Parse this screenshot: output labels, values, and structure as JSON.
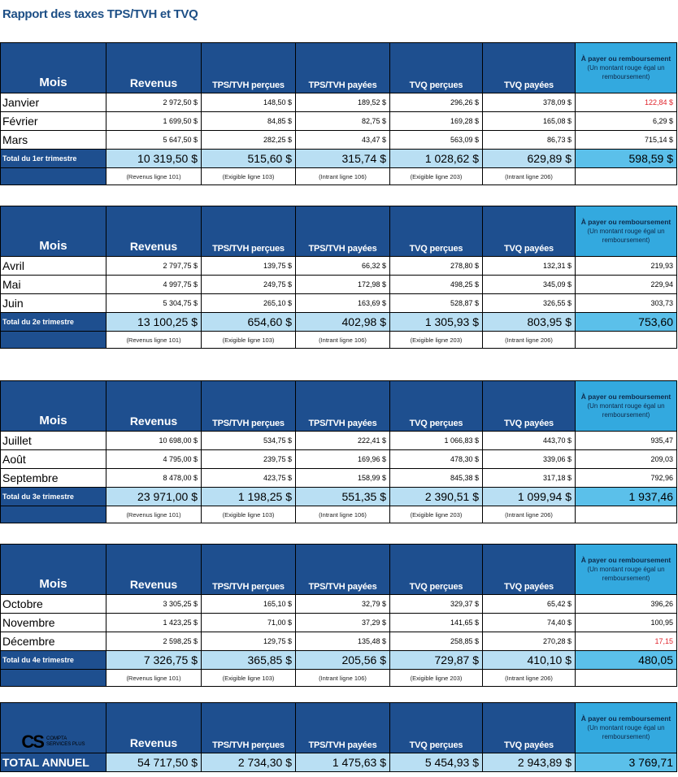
{
  "title": "Rapport des taxes TPS/TVH et TVQ",
  "headers": {
    "mois": "Mois",
    "revenus": "Revenus",
    "tps_percues": "TPS/TVH perçues",
    "tps_payees": "TPS/TVH payées",
    "tvq_percues": "TVQ perçues",
    "tvq_payees": "TVQ payées",
    "a_payer": "À payer ou remboursement",
    "a_payer_note": "(Un montant rouge égal un remboursement)"
  },
  "sources": {
    "revenus": "(Revenus ligne 101)",
    "tps_percues": "(Exigible ligne 103)",
    "tps_payees": "(Intrant ligne 106)",
    "tvq_percues": "(Exigible ligne 203)",
    "tvq_payees": "(Intrant ligne 206)"
  },
  "quarters": [
    {
      "total_label": "Total du 1er trimestre",
      "months": [
        {
          "name": "Janvier",
          "revenus": "2 972,50 $",
          "tps_percues": "148,50 $",
          "tps_payees": "189,52 $",
          "tvq_percues": "296,26 $",
          "tvq_payees": "378,09 $",
          "a_payer": "122,84 $",
          "refund": true
        },
        {
          "name": "Février",
          "revenus": "1 699,50 $",
          "tps_percues": "84,85 $",
          "tps_payees": "82,75 $",
          "tvq_percues": "169,28 $",
          "tvq_payees": "165,08 $",
          "a_payer": "6,29 $",
          "refund": false
        },
        {
          "name": "Mars",
          "revenus": "5 647,50 $",
          "tps_percues": "282,25 $",
          "tps_payees": "43,47 $",
          "tvq_percues": "563,09 $",
          "tvq_payees": "86,73 $",
          "a_payer": "715,14 $",
          "refund": false
        }
      ],
      "totals": {
        "revenus": "10 319,50 $",
        "tps_percues": "515,60 $",
        "tps_payees": "315,74 $",
        "tvq_percues": "1 028,62 $",
        "tvq_payees": "629,89 $",
        "a_payer": "598,59 $"
      }
    },
    {
      "total_label": "Total du 2e trimestre",
      "months": [
        {
          "name": "Avril",
          "revenus": "2 797,75 $",
          "tps_percues": "139,75 $",
          "tps_payees": "66,32 $",
          "tvq_percues": "278,80 $",
          "tvq_payees": "132,31 $",
          "a_payer": "219,93",
          "refund": false
        },
        {
          "name": "Mai",
          "revenus": "4 997,75 $",
          "tps_percues": "249,75 $",
          "tps_payees": "172,98 $",
          "tvq_percues": "498,25 $",
          "tvq_payees": "345,09 $",
          "a_payer": "229,94",
          "refund": false
        },
        {
          "name": "Juin",
          "revenus": "5 304,75 $",
          "tps_percues": "265,10 $",
          "tps_payees": "163,69 $",
          "tvq_percues": "528,87 $",
          "tvq_payees": "326,55 $",
          "a_payer": "303,73",
          "refund": false
        }
      ],
      "totals": {
        "revenus": "13 100,25 $",
        "tps_percues": "654,60 $",
        "tps_payees": "402,98 $",
        "tvq_percues": "1 305,93 $",
        "tvq_payees": "803,95 $",
        "a_payer": "753,60"
      }
    },
    {
      "total_label": "Total du 3e trimestre",
      "months": [
        {
          "name": "Juillet",
          "revenus": "10 698,00 $",
          "tps_percues": "534,75 $",
          "tps_payees": "222,41 $",
          "tvq_percues": "1 066,83 $",
          "tvq_payees": "443,70 $",
          "a_payer": "935,47",
          "refund": false
        },
        {
          "name": "Août",
          "revenus": "4 795,00 $",
          "tps_percues": "239,75 $",
          "tps_payees": "169,96 $",
          "tvq_percues": "478,30 $",
          "tvq_payees": "339,06 $",
          "a_payer": "209,03",
          "refund": false
        },
        {
          "name": "Septembre",
          "revenus": "8 478,00 $",
          "tps_percues": "423,75 $",
          "tps_payees": "158,99 $",
          "tvq_percues": "845,38 $",
          "tvq_payees": "317,18 $",
          "a_payer": "792,96",
          "refund": false
        }
      ],
      "totals": {
        "revenus": "23 971,00 $",
        "tps_percues": "1 198,25 $",
        "tps_payees": "551,35 $",
        "tvq_percues": "2 390,51 $",
        "tvq_payees": "1 099,94 $",
        "a_payer": "1 937,46"
      }
    },
    {
      "total_label": "Total du 4e trimestre",
      "months": [
        {
          "name": "Octobre",
          "revenus": "3 305,25 $",
          "tps_percues": "165,10 $",
          "tps_payees": "32,79 $",
          "tvq_percues": "329,37 $",
          "tvq_payees": "65,42 $",
          "a_payer": "396,26",
          "refund": false
        },
        {
          "name": "Novembre",
          "revenus": "1 423,25 $",
          "tps_percues": "71,00 $",
          "tps_payees": "37,29 $",
          "tvq_percues": "141,65 $",
          "tvq_payees": "74,40 $",
          "a_payer": "100,95",
          "refund": false
        },
        {
          "name": "Décembre",
          "revenus": "2 598,25 $",
          "tps_percues": "129,75 $",
          "tps_payees": "135,48 $",
          "tvq_percues": "258,85 $",
          "tvq_payees": "270,28 $",
          "a_payer": "17,15",
          "refund": true
        }
      ],
      "totals": {
        "revenus": "7 326,75 $",
        "tps_percues": "365,85 $",
        "tps_payees": "205,56 $",
        "tvq_percues": "729,87 $",
        "tvq_payees": "410,10 $",
        "a_payer": "480,05"
      }
    }
  ],
  "annual": {
    "logo_letters": "CS",
    "logo_text_1": "COMPTA",
    "logo_text_2": "SERVICES PLUS",
    "label": "TOTAL ANNUEL",
    "revenus": "54 717,50 $",
    "tps_percues": "2 734,30 $",
    "tps_payees": "1 475,63 $",
    "tvq_percues": "5 454,93 $",
    "tvq_payees": "2 943,89 $",
    "a_payer": "3 769,71"
  },
  "colors": {
    "header_blue": "#1e4f8f",
    "light_blue": "#b9dff3",
    "pay_blue": "#33a9df",
    "refund_red": "#e0242c"
  }
}
